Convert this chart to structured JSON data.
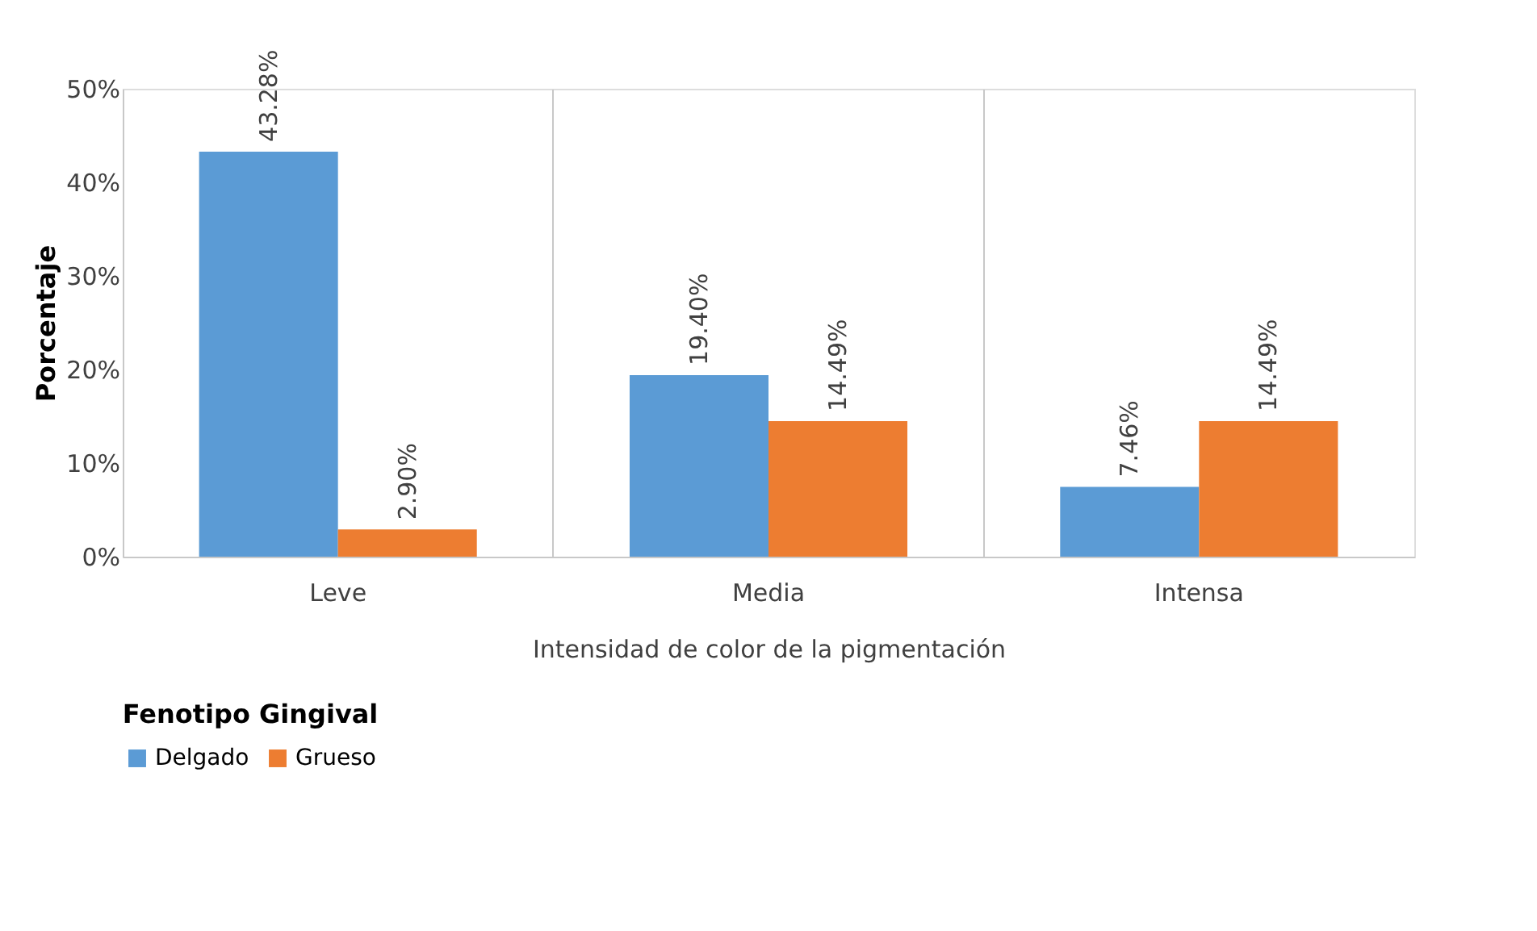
{
  "chart_data": {
    "type": "bar",
    "xlabel": "Intensidad de color de la pigmentación",
    "ylabel": "Porcentaje",
    "legend_title": "Fenotipo Gingival",
    "categories": [
      "Leve",
      "Media",
      "Intensa"
    ],
    "series": [
      {
        "name": "Delgado",
        "color": "#5b9bd5",
        "values": [
          43.28,
          19.4,
          7.46
        ],
        "value_labels": [
          "43.28%",
          "19.40%",
          "7.46%"
        ]
      },
      {
        "name": "Grueso",
        "color": "#ed7d31",
        "values": [
          2.9,
          14.49,
          14.49
        ],
        "value_labels": [
          "2.90%",
          "14.49%",
          "14.49%"
        ]
      }
    ],
    "ylim": [
      0,
      50
    ],
    "yticks": [
      {
        "value": 0,
        "label": "0%"
      },
      {
        "value": 10,
        "label": "10%"
      },
      {
        "value": 20,
        "label": "20%"
      },
      {
        "value": 30,
        "label": "30%"
      },
      {
        "value": 40,
        "label": "40%"
      },
      {
        "value": 50,
        "label": "50%"
      }
    ],
    "grid": "x",
    "legend": "bottom"
  }
}
